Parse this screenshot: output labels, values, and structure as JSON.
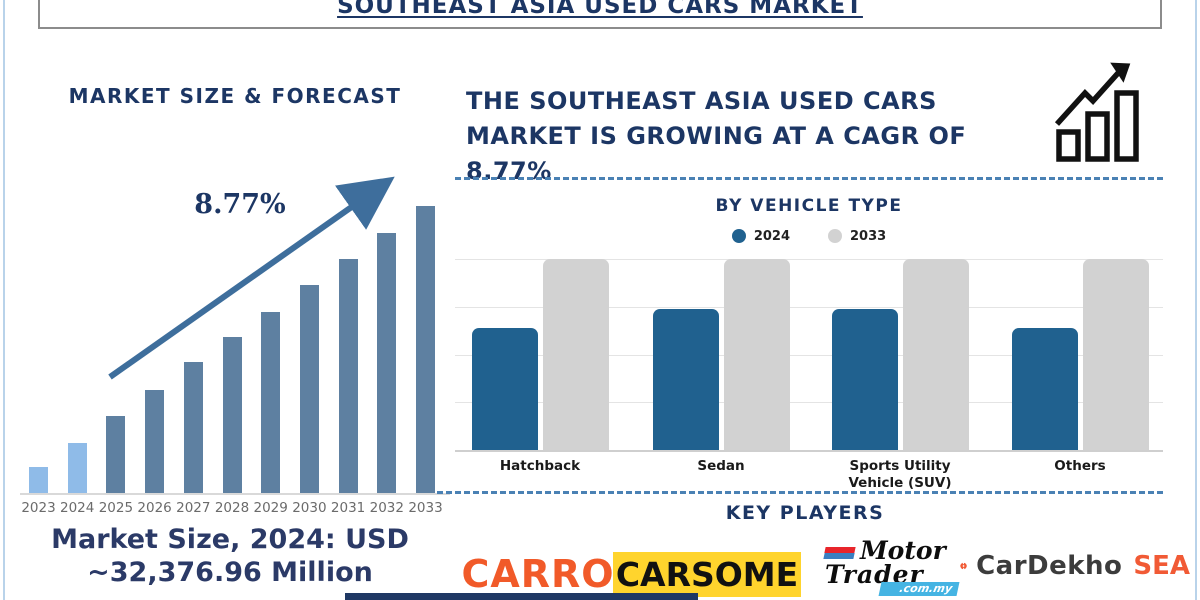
{
  "title": "SOUTHEAST ASIA USED CARS MARKET",
  "left_panel": {
    "heading": "MARKET SIZE & FORECAST",
    "cagr_annotation": "8.77%",
    "market_size_label": "Market Size, 2024: USD",
    "market_size_value": "~32,376.96 Million"
  },
  "right_panel": {
    "headline": "THE SOUTHEAST ASIA USED CARS MARKET IS GROWING AT A CAGR OF 8.77%",
    "growth_icon": "bar-chart-rising-arrow-icon"
  },
  "key_players": {
    "heading": "KEY PLAYERS",
    "logos": [
      {
        "name": "Carro",
        "text": "CARRO"
      },
      {
        "name": "Carsome",
        "text": "CARSOME"
      },
      {
        "name": "Motor Trader",
        "text_top": "Motor",
        "text_bottom": "Trader",
        "domain": ".com.my"
      },
      {
        "name": "CarDekho SEA",
        "text": "CarDekho",
        "suffix": "SEA"
      }
    ]
  },
  "chart_data": [
    {
      "id": "market-size-forecast",
      "type": "bar",
      "title": "MARKET SIZE & FORECAST",
      "categories": [
        "2023",
        "2024",
        "2025",
        "2026",
        "2027",
        "2028",
        "2029",
        "2030",
        "2031",
        "2032",
        "2033"
      ],
      "values": [
        9,
        17.5,
        27,
        36,
        45.5,
        54.5,
        63,
        72.5,
        81.5,
        90.5,
        100
      ],
      "value_note": "relative bar heights, index 2033 = 100; no y-axis shown; 2024 market size = USD ~32,376.96 Million; CAGR 8.77%",
      "annotation": "8.77%",
      "xlabel": "",
      "ylabel": "",
      "grid": false,
      "highlight_first_n_bars": 2
    },
    {
      "id": "by-vehicle-type",
      "type": "bar",
      "title": "BY VEHICLE TYPE",
      "categories": [
        "Hatchback",
        "Sedan",
        "Sports Utility Vehicle (SUV)",
        "Others"
      ],
      "series": [
        {
          "name": "2024",
          "values": [
            64,
            74,
            74,
            64
          ]
        },
        {
          "name": "2033",
          "values": [
            100,
            100,
            100,
            100
          ]
        }
      ],
      "value_note": "relative bar heights in % of 2033 bar; no y-axis labels shown",
      "legend_position": "top",
      "grid": true,
      "ylim": [
        0,
        100
      ]
    }
  ],
  "colors": {
    "navy": "#1c3664",
    "forecast_bar_light": "#8fbbe8",
    "forecast_bar_steel": "#5e80a1",
    "trend_arrow": "#3e6e9c",
    "bar_2024": "#20618f",
    "bar_2033": "#d2d2d2",
    "dashed_divider": "#4a81b4",
    "carro_orange": "#f15a29",
    "carsome_yellow": "#ffd42d",
    "motortrader_red": "#e8252b",
    "motortrader_banner_blue": "#45b4e3",
    "cardekho_orange": "#f15a35"
  }
}
